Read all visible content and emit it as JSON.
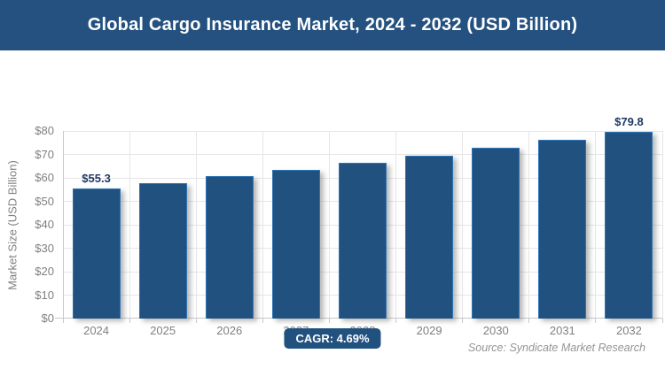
{
  "header": {
    "title": "Global Cargo Insurance Market, 2024 - 2032 (USD Billion)"
  },
  "chart_data": {
    "type": "bar",
    "title": "Global Cargo Insurance Market, 2024 - 2032 (USD Billion)",
    "categories": [
      "2024",
      "2025",
      "2026",
      "2027",
      "2028",
      "2029",
      "2030",
      "2031",
      "2032"
    ],
    "values": [
      55.3,
      57.9,
      60.6,
      63.5,
      66.4,
      69.5,
      72.8,
      76.2,
      79.8
    ],
    "xlabel": "",
    "ylabel": "Market Size (USD Billion)",
    "ylim": [
      0,
      80
    ],
    "ytick_step": 10,
    "ytick_prefix": "$",
    "grid": true,
    "legend": false,
    "data_labels": {
      "0": "$55.3",
      "8": "$79.8"
    },
    "bar_color": "#21517F",
    "bar_border_color": "#2E74B5",
    "label_color": "#1F3864"
  },
  "footer": {
    "cagr_label": "CAGR: 4.69%",
    "source": "Source: Syndicate Market Research"
  },
  "colors": {
    "header_bg": "#24517F",
    "header_text": "#FFFFFF",
    "axis_text": "#808080",
    "gridline": "#E6E6E6",
    "baseline": "#C9C9C9",
    "source_text": "#949494"
  }
}
